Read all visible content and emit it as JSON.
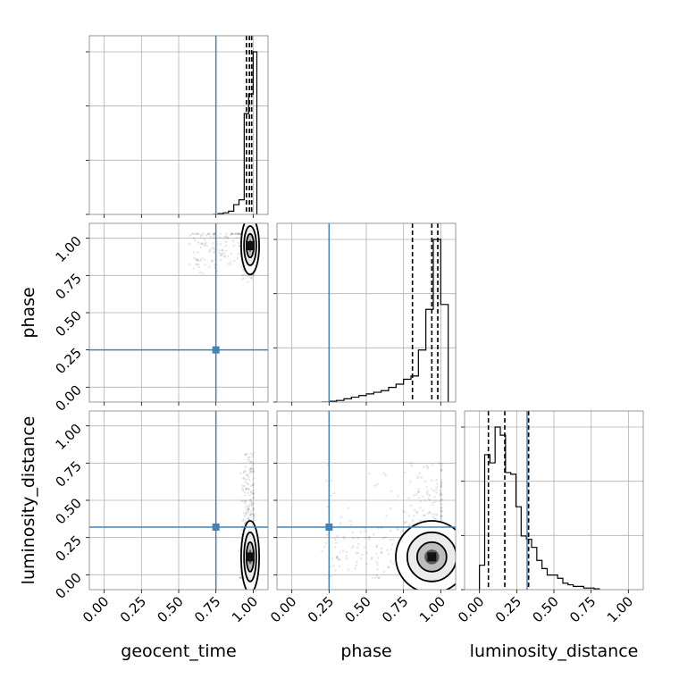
{
  "chart_data": {
    "type": "corner",
    "parameters": [
      "geocent_time",
      "phase",
      "luminosity_distance"
    ],
    "axis_labels": {
      "x": [
        "geocent_time",
        "phase",
        "luminosity_distance"
      ],
      "y": [
        "phase",
        "luminosity_distance"
      ]
    },
    "tick_labels": [
      "0.00",
      "0.25",
      "0.50",
      "0.75",
      "1.00"
    ],
    "axis_range": [
      -0.1,
      1.1
    ],
    "grid": true,
    "injection_values": {
      "geocent_time": 0.75,
      "phase": 0.25,
      "luminosity_distance": 0.32
    },
    "quantiles": {
      "geocent_time": [
        0.955,
        0.975,
        0.99
      ],
      "phase": [
        0.81,
        0.94,
        0.98
      ],
      "luminosity_distance": [
        0.06,
        0.17,
        0.33
      ]
    },
    "histograms": {
      "geocent_time": {
        "edges": [
          0.73,
          0.765,
          0.8,
          0.835,
          0.87,
          0.905,
          0.94,
          0.97,
          1.0,
          1.025
        ],
        "counts": [
          0.0,
          0.005,
          0.01,
          0.02,
          0.06,
          0.09,
          0.62,
          0.74,
          1.0
        ]
      },
      "phase": {
        "edges": [
          0.2,
          0.25,
          0.3,
          0.35,
          0.4,
          0.45,
          0.5,
          0.55,
          0.6,
          0.65,
          0.7,
          0.75,
          0.8,
          0.85,
          0.9,
          0.95,
          1.0,
          1.05
        ],
        "counts": [
          0.0,
          0.005,
          0.01,
          0.02,
          0.03,
          0.04,
          0.05,
          0.06,
          0.07,
          0.09,
          0.11,
          0.14,
          0.16,
          0.32,
          0.57,
          1.0,
          0.6
        ]
      },
      "luminosity_distance": {
        "edges": [
          0.0,
          0.035,
          0.07,
          0.105,
          0.14,
          0.175,
          0.21,
          0.245,
          0.28,
          0.315,
          0.35,
          0.385,
          0.42,
          0.455,
          0.49,
          0.525,
          0.56,
          0.595,
          0.63,
          0.665,
          0.7,
          0.735,
          0.77,
          0.805
        ],
        "counts": [
          0.15,
          0.83,
          0.78,
          1.0,
          0.95,
          0.72,
          0.71,
          0.51,
          0.33,
          0.31,
          0.26,
          0.18,
          0.13,
          0.09,
          0.09,
          0.07,
          0.04,
          0.03,
          0.02,
          0.02,
          0.01,
          0.01,
          0.005
        ]
      }
    },
    "joint_samples": {
      "phase_vs_geocent_time": {
        "x_center": 0.975,
        "x_spread": 0.025,
        "y_center": 0.95,
        "y_spread": 0.08,
        "x_range": [
          0.57,
          1.0
        ]
      },
      "luminosity_distance_vs_geocent_time": {
        "x_center": 0.975,
        "x_spread": 0.025,
        "y_center": 0.15,
        "y_spread": 0.1,
        "y_range": [
          0.0,
          0.82
        ]
      },
      "luminosity_distance_vs_phase": {
        "x_center": 0.94,
        "x_spread": 0.1,
        "y_center": 0.15,
        "y_spread": 0.1,
        "x_range": [
          0.2,
          1.05
        ],
        "y_range": [
          0.0,
          0.75
        ]
      }
    },
    "density_peaks": {
      "phase_vs_geocent_time": [
        0.98,
        0.95
      ],
      "luminosity_distance_vs_geocent_time": [
        0.98,
        0.12
      ],
      "luminosity_distance_vs_phase": [
        0.94,
        0.12
      ]
    },
    "colors": {
      "injection": "#4682b4",
      "histogram": "#000000",
      "grid": "#b0b0b0",
      "scatter": "#000000"
    }
  }
}
